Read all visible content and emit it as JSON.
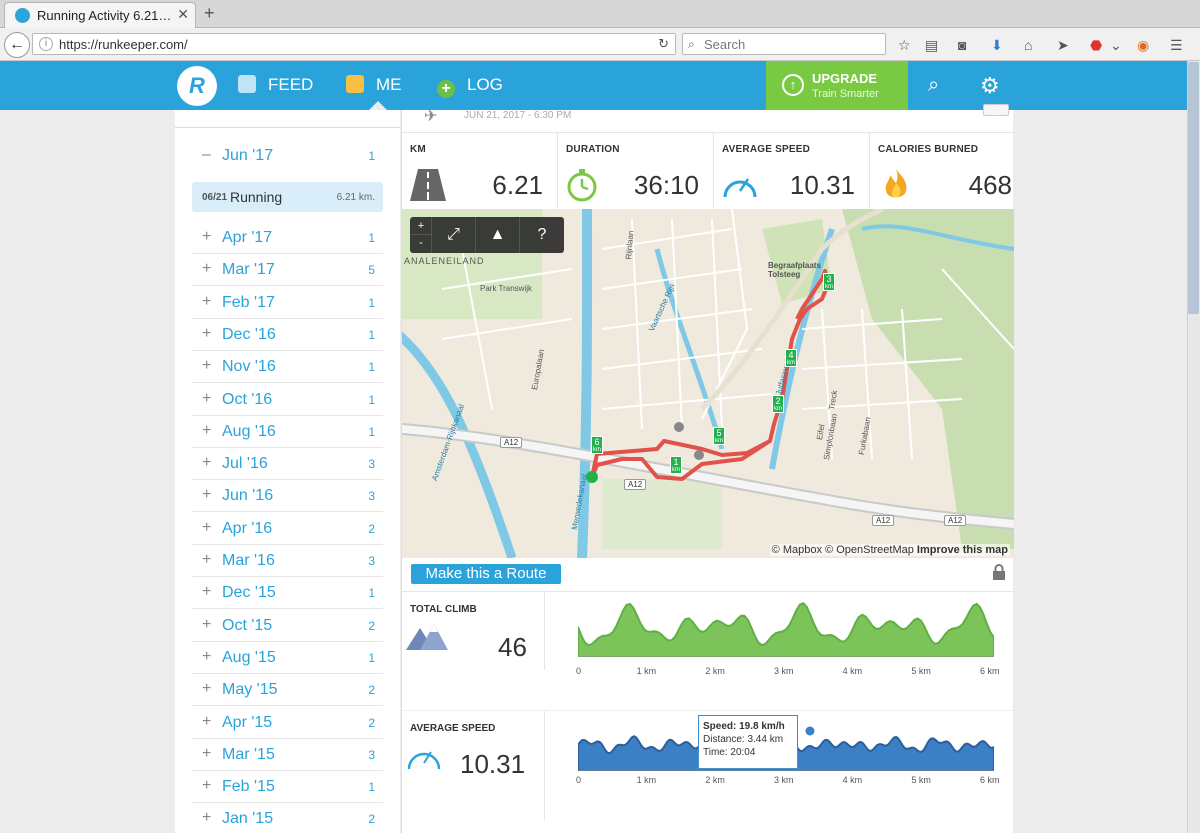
{
  "browser": {
    "tab_title": "Running Activity 6.21…",
    "url": "https://runkeeper.com/",
    "search_placeholder": "Search"
  },
  "header": {
    "nav": [
      {
        "label": "FEED"
      },
      {
        "label": "ME"
      },
      {
        "label": "LOG"
      }
    ],
    "upgrade_title": "UPGRADE",
    "upgrade_subtitle": "Train Smarter"
  },
  "sidebar": {
    "current_month": {
      "label": "Jun '17",
      "count": "1"
    },
    "activity": {
      "date": "06/21",
      "name": "Running",
      "distance": "6.21 km."
    },
    "months": [
      {
        "label": "Apr '17",
        "count": "1"
      },
      {
        "label": "Mar '17",
        "count": "5"
      },
      {
        "label": "Feb '17",
        "count": "1"
      },
      {
        "label": "Dec '16",
        "count": "1"
      },
      {
        "label": "Nov '16",
        "count": "1"
      },
      {
        "label": "Oct '16",
        "count": "1"
      },
      {
        "label": "Aug '16",
        "count": "1"
      },
      {
        "label": "Jul '16",
        "count": "3"
      },
      {
        "label": "Jun '16",
        "count": "3"
      },
      {
        "label": "Apr '16",
        "count": "2"
      },
      {
        "label": "Mar '16",
        "count": "3"
      },
      {
        "label": "Dec '15",
        "count": "1"
      },
      {
        "label": "Oct '15",
        "count": "2"
      },
      {
        "label": "Aug '15",
        "count": "1"
      },
      {
        "label": "May '15",
        "count": "2"
      },
      {
        "label": "Apr '15",
        "count": "2"
      },
      {
        "label": "Mar '15",
        "count": "3"
      },
      {
        "label": "Feb '15",
        "count": "1"
      },
      {
        "label": "Jan '15",
        "count": "2"
      }
    ]
  },
  "activity": {
    "header_date": "JUN 21, 2017  -  6:30 PM",
    "stats": [
      {
        "label": "KM",
        "value": "6.21",
        "icon": "road-icon"
      },
      {
        "label": "DURATION",
        "value": "36:10",
        "icon": "stopwatch-icon"
      },
      {
        "label": "AVERAGE SPEED",
        "value": "10.31",
        "icon": "speedometer-icon"
      },
      {
        "label": "CALORIES BURNED",
        "value": "468",
        "icon": "flame-icon"
      }
    ],
    "map": {
      "attribution_mapbox": "© Mapbox",
      "attribution_osm": "© OpenStreetMap",
      "attribution_improve": "Improve this map",
      "help_label": "?",
      "zoom_in": "+",
      "zoom_out": "-",
      "labels": [
        {
          "text": "ANALENEILAND"
        },
        {
          "text": "Park Transwijk"
        },
        {
          "text": "Begraafplaats Tolsteeg"
        },
        {
          "text": "Europalaan"
        },
        {
          "text": "Merwedekanaal"
        },
        {
          "text": "Vaartsche Rijn"
        },
        {
          "text": "Amsterdam-Rijnkanaal"
        },
        {
          "text": "Simplonbaan"
        },
        {
          "text": "Furkabaan"
        },
        {
          "text": "Eifel"
        },
        {
          "text": "Treck"
        },
        {
          "text": "Rijnlaan"
        },
        {
          "text": "Jutfaseweg"
        }
      ],
      "road_labels": [
        "A12",
        "A12",
        "A12",
        "A12"
      ],
      "km_markers": [
        "1",
        "2",
        "3",
        "4",
        "5",
        "6"
      ],
      "km_unit": "km"
    },
    "make_route_label": "Make this a Route",
    "climb": {
      "label": "TOTAL CLIMB",
      "value": "46"
    },
    "speed": {
      "label": "AVERAGE SPEED",
      "value": "10.31"
    },
    "axis_ticks": [
      "0",
      "1 km",
      "2 km",
      "3 km",
      "4 km",
      "5 km",
      "6 km"
    ],
    "tooltip": {
      "speed": "Speed: 19.8 km/h",
      "distance": "Distance: 3.44 km",
      "time": "Time: 20:04"
    },
    "colors": {
      "elevation": "#5fb043",
      "speed": "#3b7fc4",
      "route": "#e0524a",
      "accent": "#2aa3db"
    }
  }
}
